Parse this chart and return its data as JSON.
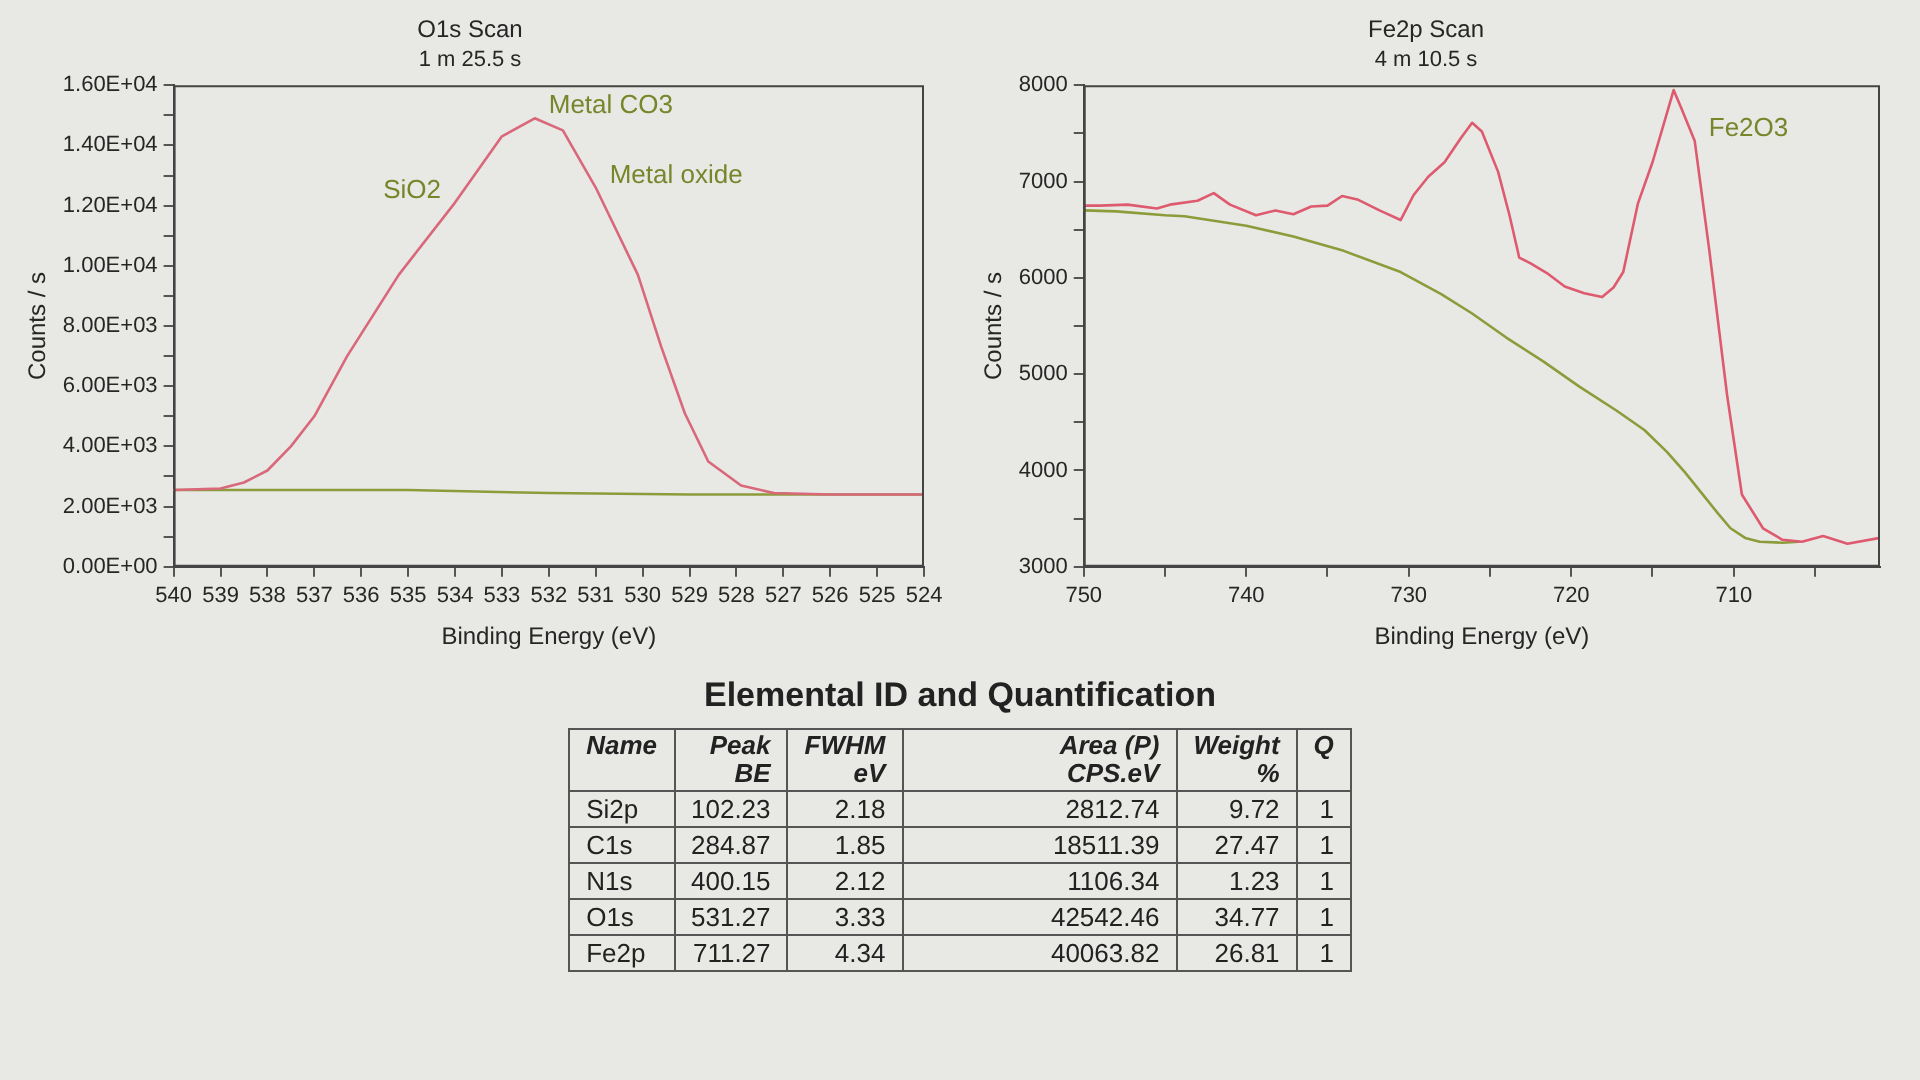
{
  "chart_data": [
    {
      "type": "line",
      "title": "O1s Scan",
      "subtitle": "1 m 25.5 s",
      "xlabel": "Binding Energy (eV)",
      "ylabel": "Counts / s",
      "xlim": [
        540,
        524
      ],
      "xticks": [
        540,
        539,
        538,
        537,
        536,
        535,
        534,
        533,
        532,
        531,
        530,
        529,
        528,
        527,
        526,
        525,
        524
      ],
      "ylim": [
        0,
        16000
      ],
      "yticks": [
        {
          "value": 0,
          "label": "0.00E+00"
        },
        {
          "value": 1000,
          "label": null
        },
        {
          "value": 2000,
          "label": "2.00E+03"
        },
        {
          "value": 3000,
          "label": null
        },
        {
          "value": 4000,
          "label": "4.00E+03"
        },
        {
          "value": 5000,
          "label": null
        },
        {
          "value": 6000,
          "label": "6.00E+03"
        },
        {
          "value": 7000,
          "label": null
        },
        {
          "value": 8000,
          "label": "8.00E+03"
        },
        {
          "value": 9000,
          "label": null
        },
        {
          "value": 10000,
          "label": "1.00E+04"
        },
        {
          "value": 11000,
          "label": null
        },
        {
          "value": 12000,
          "label": "1.20E+04"
        },
        {
          "value": 13000,
          "label": null
        },
        {
          "value": 14000,
          "label": "1.40E+04"
        },
        {
          "value": 15000,
          "label": null
        },
        {
          "value": 16000,
          "label": "1.60E+04"
        }
      ],
      "series": [
        {
          "color": "#d8687a",
          "x": [
            540,
            539,
            538.5,
            538,
            537.5,
            537,
            536.3,
            535.2,
            534,
            533,
            532.3,
            531.7,
            531,
            530.1,
            529.6,
            529.1,
            528.6,
            527.9,
            527.2,
            526,
            524
          ],
          "values": [
            2550,
            2600,
            2800,
            3200,
            4000,
            5000,
            7000,
            9700,
            12100,
            14300,
            14900,
            14500,
            12600,
            9700,
            7300,
            5100,
            3500,
            2700,
            2450,
            2400,
            2400
          ]
        },
        {
          "color": "#8c9c3a",
          "x": [
            540,
            535,
            532,
            529,
            524
          ],
          "values": [
            2550,
            2550,
            2450,
            2400,
            2400
          ]
        }
      ],
      "annotations": [
        {
          "text": "SiO2",
          "x": 534,
          "y": 12100
        },
        {
          "text": "Metal CO3",
          "x": 532.3,
          "y": 14900
        },
        {
          "text": "Metal oxide",
          "x": 531,
          "y": 12600
        }
      ]
    },
    {
      "type": "line",
      "title": "Fe2p Scan",
      "subtitle": "4 m 10.5 s",
      "xlabel": "Binding Energy (eV)",
      "ylabel": "Counts / s",
      "xlim": [
        750,
        701
      ],
      "xticks": [
        750,
        {
          "value": 745,
          "label": null
        },
        740,
        {
          "value": 735,
          "label": null
        },
        730,
        {
          "value": 725,
          "label": null
        },
        720,
        {
          "value": 715,
          "label": null
        },
        710,
        {
          "value": 705,
          "label": null
        }
      ],
      "ylim": [
        3000,
        8000
      ],
      "yticks": [
        3000,
        {
          "value": 3500,
          "label": null
        },
        4000,
        {
          "value": 4500,
          "label": null
        },
        5000,
        {
          "value": 5500,
          "label": null
        },
        6000,
        {
          "value": 6500,
          "label": null
        },
        7000,
        {
          "value": 7500,
          "label": null
        },
        8000
      ],
      "series": [
        {
          "color": "#de5a6e",
          "x": [
            750,
            749,
            747.3,
            745.5,
            744.7,
            743,
            742,
            741,
            739.4,
            738.2,
            737.1,
            736,
            735,
            734.1,
            733.1,
            731.8,
            730.5,
            729.7,
            728.8,
            727.8,
            726.8,
            726.1,
            725.5,
            724.5,
            723.8,
            723.2,
            722.5,
            721.5,
            720.4,
            719.2,
            718.1,
            717.4,
            716.8,
            715.9,
            715,
            714.3,
            713.7,
            713.2,
            712.4,
            711.5,
            710.4,
            709.5,
            708.2,
            707,
            705.8,
            704.5,
            703,
            701
          ],
          "values": [
            6750,
            6750,
            6760,
            6720,
            6760,
            6800,
            6880,
            6760,
            6650,
            6700,
            6660,
            6740,
            6750,
            6850,
            6810,
            6700,
            6600,
            6860,
            7050,
            7200,
            7450,
            7610,
            7520,
            7100,
            6650,
            6210,
            6150,
            6050,
            5910,
            5840,
            5800,
            5900,
            6060,
            6770,
            7200,
            7600,
            7950,
            7750,
            7420,
            6280,
            4770,
            3750,
            3400,
            3280,
            3260,
            3320,
            3240,
            3300
          ]
        },
        {
          "color": "#8c9c3a",
          "x": [
            750,
            748,
            745,
            743.8,
            740,
            737.1,
            734,
            730.5,
            728,
            726.1,
            724,
            721.7,
            719.5,
            717.2,
            715.5,
            714.1,
            713,
            711.9,
            711,
            710.2,
            709.3,
            708.4,
            707,
            706
          ],
          "values": [
            6700,
            6690,
            6650,
            6640,
            6540,
            6430,
            6280,
            6060,
            5830,
            5630,
            5380,
            5130,
            4870,
            4620,
            4420,
            4190,
            3980,
            3750,
            3560,
            3400,
            3300,
            3260,
            3250,
            3260
          ]
        }
      ],
      "annotations": [
        {
          "text": "Fe2O3",
          "x": 712.4,
          "y": 7420
        }
      ]
    },
    {
      "type": "other",
      "title": "Elemental ID and Quantification",
      "ylabel": "Name",
      "categories": [
        "Si2p",
        "C1s",
        "N1s",
        "O1s",
        "Fe2p"
      ],
      "series": [
        {
          "name": "Peak\nBE",
          "values": [
            102.23,
            284.87,
            400.15,
            531.27,
            711.27
          ]
        },
        {
          "name": "FWHM\neV",
          "values": [
            2.18,
            1.85,
            2.12,
            3.33,
            4.34
          ]
        },
        {
          "name": "Area (P)\nCPS.eV",
          "values": [
            2812.74,
            18511.39,
            1106.34,
            42542.46,
            40063.82
          ]
        },
        {
          "name": "Weight\n%",
          "values": [
            9.72,
            27.47,
            1.23,
            34.77,
            26.81
          ]
        },
        {
          "name": "Q",
          "values": [
            1,
            1,
            1,
            1,
            1
          ]
        }
      ],
      "data_labels": true
    }
  ]
}
